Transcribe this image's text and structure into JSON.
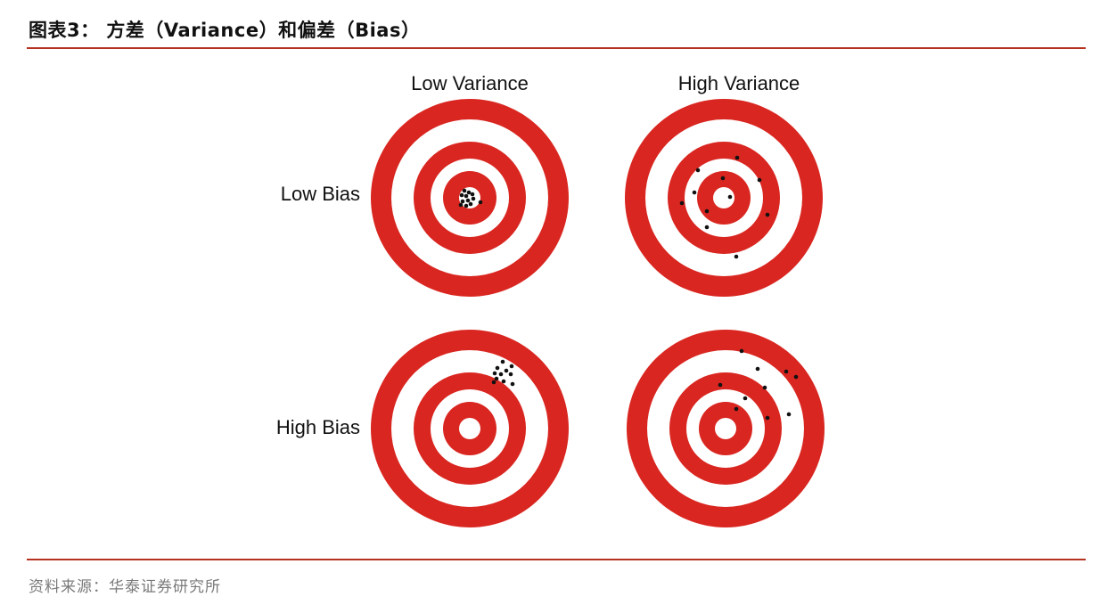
{
  "figure": {
    "title": "图表3： 方差（Variance）和偏差（Bias）",
    "source": "资料来源：华泰证券研究所"
  },
  "columns": [
    "Low Variance",
    "High Variance"
  ],
  "rows": [
    "Low Bias",
    "High Bias"
  ],
  "colors": {
    "ring_red": "#d92620",
    "ring_white": "#ffffff",
    "dot": "#111111",
    "rule": "#b5321f"
  }
}
